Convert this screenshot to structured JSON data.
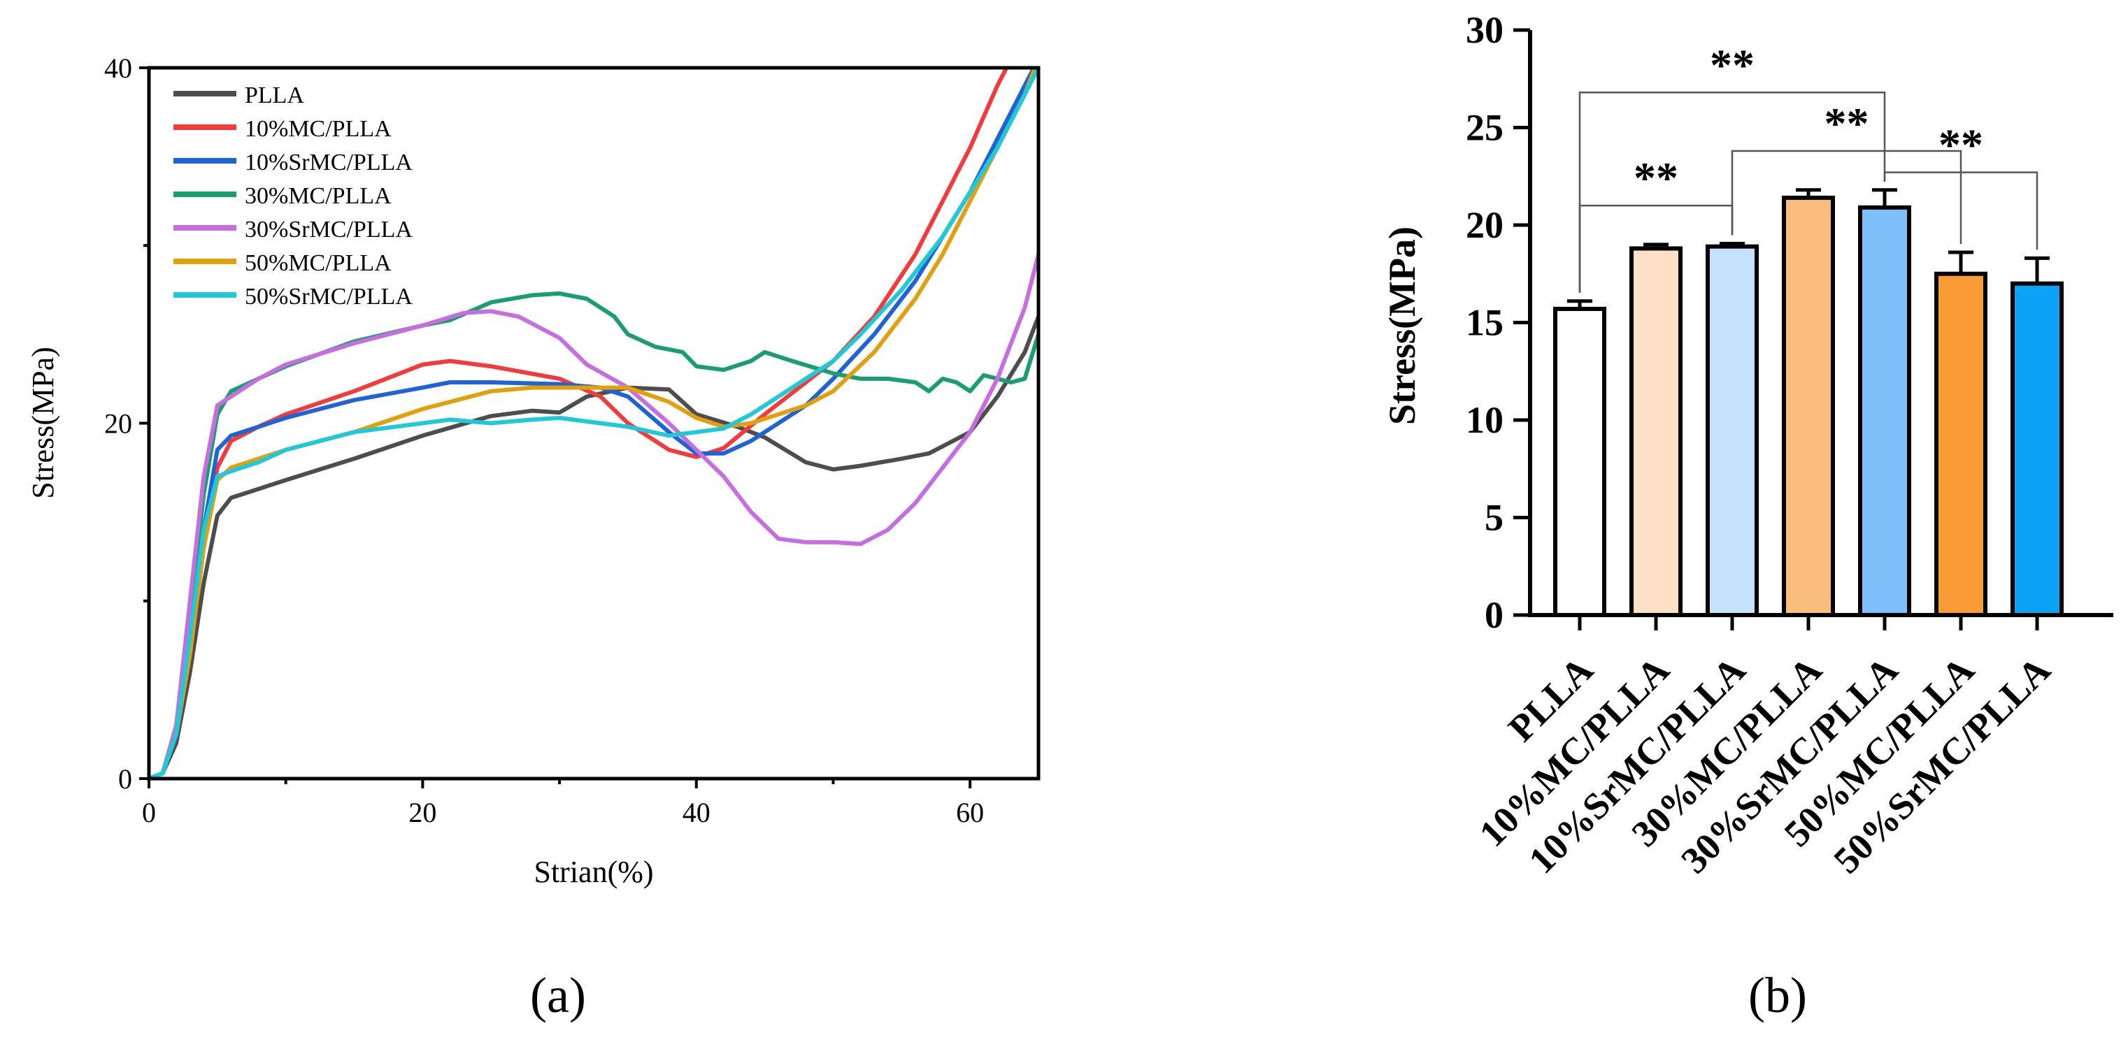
{
  "chart_data": [
    {
      "type": "line",
      "panel_label": "(a)",
      "xlabel": "Strian(%)",
      "ylabel": "Stress(MPa)",
      "xlim": [
        0,
        65
      ],
      "ylim": [
        0,
        40
      ],
      "x_ticks": [
        0,
        20,
        40,
        60
      ],
      "y_ticks": [
        0,
        20,
        40
      ],
      "grid": false,
      "legend_position": "top-left",
      "series": [
        {
          "name": "PLLA",
          "color": "#4d4d4d",
          "points": [
            [
              0,
              0
            ],
            [
              1,
              0.3
            ],
            [
              2,
              2
            ],
            [
              3,
              6
            ],
            [
              4,
              11
            ],
            [
              5,
              14.8
            ],
            [
              6,
              15.8
            ],
            [
              8,
              16.3
            ],
            [
              10,
              16.8
            ],
            [
              15,
              18
            ],
            [
              20,
              19.3
            ],
            [
              25,
              20.4
            ],
            [
              28,
              20.7
            ],
            [
              30,
              20.6
            ],
            [
              32,
              21.5
            ],
            [
              35,
              22
            ],
            [
              38,
              21.9
            ],
            [
              40,
              20.5
            ],
            [
              43,
              19.8
            ],
            [
              45,
              19.2
            ],
            [
              48,
              17.8
            ],
            [
              50,
              17.4
            ],
            [
              52,
              17.6
            ],
            [
              55,
              18
            ],
            [
              57,
              18.3
            ],
            [
              60,
              19.5
            ],
            [
              62,
              21.5
            ],
            [
              64,
              24
            ],
            [
              65,
              26
            ]
          ]
        },
        {
          "name": "10%MC/PLLA",
          "color": "#f03c3c",
          "points": [
            [
              0,
              0
            ],
            [
              1,
              0.3
            ],
            [
              2,
              2.5
            ],
            [
              3,
              7
            ],
            [
              4,
              13
            ],
            [
              5,
              17.5
            ],
            [
              6,
              19
            ],
            [
              8,
              19.8
            ],
            [
              10,
              20.5
            ],
            [
              15,
              21.8
            ],
            [
              20,
              23.3
            ],
            [
              22,
              23.5
            ],
            [
              25,
              23.2
            ],
            [
              30,
              22.5
            ],
            [
              33,
              21.5
            ],
            [
              35,
              20
            ],
            [
              38,
              18.5
            ],
            [
              40,
              18.1
            ],
            [
              42,
              18.6
            ],
            [
              45,
              20.5
            ],
            [
              50,
              23.5
            ],
            [
              53,
              26
            ],
            [
              56,
              29.5
            ],
            [
              58,
              32.5
            ],
            [
              60,
              35.5
            ],
            [
              62,
              39
            ],
            [
              63,
              40.5
            ]
          ]
        },
        {
          "name": "10%SrMC/PLLA",
          "color": "#1f63d4",
          "points": [
            [
              0,
              0
            ],
            [
              1,
              0.3
            ],
            [
              2,
              2.5
            ],
            [
              3,
              8
            ],
            [
              4,
              14
            ],
            [
              5,
              18.5
            ],
            [
              6,
              19.3
            ],
            [
              8,
              19.8
            ],
            [
              10,
              20.3
            ],
            [
              15,
              21.3
            ],
            [
              20,
              22
            ],
            [
              22,
              22.3
            ],
            [
              25,
              22.3
            ],
            [
              30,
              22.2
            ],
            [
              33,
              22
            ],
            [
              35,
              21.5
            ],
            [
              38,
              19.5
            ],
            [
              40,
              18.3
            ],
            [
              42,
              18.3
            ],
            [
              44,
              19
            ],
            [
              46,
              20
            ],
            [
              48,
              21
            ],
            [
              50,
              22.5
            ],
            [
              53,
              25
            ],
            [
              56,
              28
            ],
            [
              58,
              30.5
            ],
            [
              60,
              33
            ],
            [
              62,
              36
            ],
            [
              64,
              39
            ],
            [
              65,
              40.5
            ]
          ]
        },
        {
          "name": "30%MC/PLLA",
          "color": "#1a9e6e",
          "points": [
            [
              0,
              0
            ],
            [
              1,
              0.3
            ],
            [
              2,
              3
            ],
            [
              3,
              9
            ],
            [
              4,
              16
            ],
            [
              5,
              20.5
            ],
            [
              6,
              21.8
            ],
            [
              8,
              22.5
            ],
            [
              10,
              23.2
            ],
            [
              15,
              24.6
            ],
            [
              20,
              25.5
            ],
            [
              22,
              25.8
            ],
            [
              25,
              26.8
            ],
            [
              28,
              27.2
            ],
            [
              30,
              27.3
            ],
            [
              32,
              27
            ],
            [
              34,
              26
            ],
            [
              35,
              25
            ],
            [
              37,
              24.3
            ],
            [
              39,
              24
            ],
            [
              40,
              23.2
            ],
            [
              42,
              23
            ],
            [
              44,
              23.5
            ],
            [
              45,
              24
            ],
            [
              47,
              23.5
            ],
            [
              50,
              22.8
            ],
            [
              52,
              22.5
            ],
            [
              54,
              22.5
            ],
            [
              56,
              22.3
            ],
            [
              57,
              21.8
            ],
            [
              58,
              22.5
            ],
            [
              59,
              22.3
            ],
            [
              60,
              21.8
            ],
            [
              61,
              22.7
            ],
            [
              62,
              22.5
            ],
            [
              63,
              22.3
            ],
            [
              64,
              22.5
            ],
            [
              65,
              25
            ]
          ]
        },
        {
          "name": "30%SrMC/PLLA",
          "color": "#c46ee0",
          "points": [
            [
              0,
              0
            ],
            [
              1,
              0.3
            ],
            [
              2,
              3
            ],
            [
              3,
              10
            ],
            [
              4,
              17
            ],
            [
              5,
              21
            ],
            [
              6,
              21.5
            ],
            [
              8,
              22.5
            ],
            [
              10,
              23.3
            ],
            [
              15,
              24.5
            ],
            [
              20,
              25.5
            ],
            [
              23,
              26.2
            ],
            [
              25,
              26.3
            ],
            [
              27,
              26
            ],
            [
              30,
              24.8
            ],
            [
              32,
              23.3
            ],
            [
              35,
              22
            ],
            [
              38,
              20
            ],
            [
              40,
              18.5
            ],
            [
              42,
              17
            ],
            [
              44,
              15
            ],
            [
              46,
              13.5
            ],
            [
              48,
              13.3
            ],
            [
              50,
              13.3
            ],
            [
              52,
              13.2
            ],
            [
              54,
              14
            ],
            [
              56,
              15.5
            ],
            [
              58,
              17.5
            ],
            [
              60,
              19.5
            ],
            [
              62,
              22.5
            ],
            [
              64,
              26.5
            ],
            [
              65,
              29.5
            ]
          ]
        },
        {
          "name": "50%MC/PLLA",
          "color": "#e0a010",
          "points": [
            [
              0,
              0
            ],
            [
              1,
              0.3
            ],
            [
              2,
              2.5
            ],
            [
              3,
              7
            ],
            [
              4,
              13
            ],
            [
              5,
              16.8
            ],
            [
              6,
              17.5
            ],
            [
              8,
              18
            ],
            [
              10,
              18.5
            ],
            [
              15,
              19.5
            ],
            [
              20,
              20.8
            ],
            [
              25,
              21.8
            ],
            [
              28,
              22
            ],
            [
              30,
              22
            ],
            [
              35,
              22
            ],
            [
              38,
              21.2
            ],
            [
              40,
              20.3
            ],
            [
              42,
              19.8
            ],
            [
              44,
              20
            ],
            [
              46,
              20.5
            ],
            [
              48,
              21
            ],
            [
              50,
              21.8
            ],
            [
              53,
              24
            ],
            [
              56,
              27
            ],
            [
              58,
              29.5
            ],
            [
              60,
              32.5
            ],
            [
              62,
              35.5
            ],
            [
              64,
              38.5
            ],
            [
              65,
              40.5
            ]
          ]
        },
        {
          "name": "50%SrMC/PLLA",
          "color": "#20c8d8",
          "points": [
            [
              0,
              0
            ],
            [
              1,
              0.3
            ],
            [
              2,
              2.5
            ],
            [
              3,
              8
            ],
            [
              4,
              14
            ],
            [
              5,
              17
            ],
            [
              6,
              17.3
            ],
            [
              8,
              17.8
            ],
            [
              10,
              18.5
            ],
            [
              15,
              19.5
            ],
            [
              20,
              20
            ],
            [
              22,
              20.2
            ],
            [
              25,
              20
            ],
            [
              28,
              20.2
            ],
            [
              30,
              20.3
            ],
            [
              32,
              20.1
            ],
            [
              35,
              19.8
            ],
            [
              38,
              19.3
            ],
            [
              40,
              19.5
            ],
            [
              42,
              19.7
            ],
            [
              44,
              20.5
            ],
            [
              46,
              21.5
            ],
            [
              48,
              22.5
            ],
            [
              50,
              23.5
            ],
            [
              52,
              25
            ],
            [
              55,
              27.5
            ],
            [
              58,
              30.5
            ],
            [
              60,
              33
            ],
            [
              62,
              35.5
            ],
            [
              64,
              38.5
            ],
            [
              65,
              40
            ]
          ]
        }
      ]
    },
    {
      "type": "bar",
      "panel_label": "(b)",
      "xlabel": "",
      "ylabel": "Stress(MPa)",
      "ylim": [
        0,
        30
      ],
      "y_ticks": [
        0,
        5,
        10,
        15,
        20,
        25,
        30
      ],
      "grid": false,
      "categories": [
        "PLLA",
        "10%MC/PLLA",
        "10%SrMC/PLLA",
        "30%MC/PLLA",
        "30%SrMC/PLLA",
        "50%MC/PLLA",
        "50%SrMC/PLLA"
      ],
      "values": [
        15.7,
        18.8,
        18.9,
        21.4,
        20.9,
        17.5,
        17.0
      ],
      "errors": [
        0.4,
        0.2,
        0.15,
        0.4,
        0.9,
        1.1,
        1.3
      ],
      "colors": [
        "#ffffff",
        "#fde0c5",
        "#c5e1fb",
        "#fbbd7e",
        "#7fc0fb",
        "#f99c35",
        "#0aa3f5"
      ],
      "significance": [
        {
          "from": "PLLA",
          "to": "10%SrMC/PLLA",
          "label": "**",
          "y": 21
        },
        {
          "from": "10%SrMC/PLLA",
          "to": "50%MC/PLLA",
          "label": "**",
          "y": 23.8
        },
        {
          "from": "30%SrMC/PLLA",
          "to": "50%SrMC/PLLA",
          "label": "**",
          "y": 22.7
        },
        {
          "from": "PLLA",
          "to": "30%SrMC/PLLA",
          "label": "**",
          "y": 26.8
        }
      ]
    }
  ]
}
